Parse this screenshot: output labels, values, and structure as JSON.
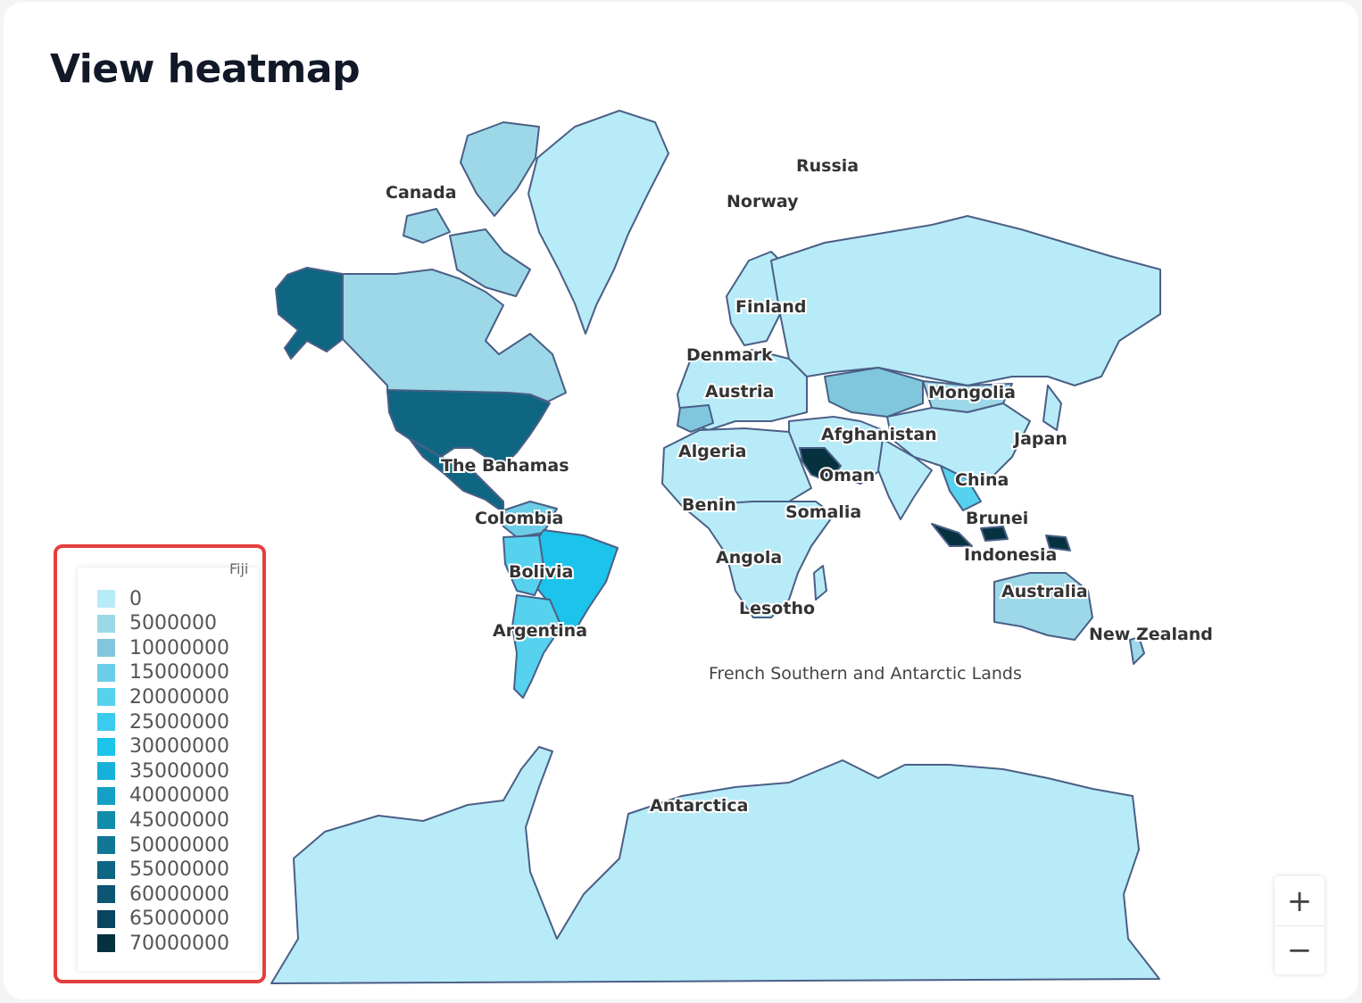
{
  "page": {
    "title": "View heatmap"
  },
  "map": {
    "labels": [
      "Canada",
      "Russia",
      "Norway",
      "Finland",
      "Denmark",
      "Austria",
      "Mongolia",
      "Afghanistan",
      "Japan",
      "Algeria",
      "Oman",
      "China",
      "The Bahamas",
      "Benin",
      "Somalia",
      "Brunei",
      "Colombia",
      "Angola",
      "Indonesia",
      "Bolivia",
      "Lesotho",
      "Australia",
      "Argentina",
      "New Zealand",
      "French Southern and Antarctic Lands",
      "Antarctica",
      "Fiji"
    ]
  },
  "legend": {
    "fiji_label": "Fiji",
    "items": [
      {
        "label": "0",
        "color": "#b8ebf8"
      },
      {
        "label": "5000000",
        "color": "#9dd8e8"
      },
      {
        "label": "10000000",
        "color": "#80c6dc"
      },
      {
        "label": "15000000",
        "color": "#6ccde6"
      },
      {
        "label": "20000000",
        "color": "#56d1ee"
      },
      {
        "label": "25000000",
        "color": "#3ccbee"
      },
      {
        "label": "30000000",
        "color": "#1cc3ea"
      },
      {
        "label": "35000000",
        "color": "#16b0d8"
      },
      {
        "label": "40000000",
        "color": "#14a0c4"
      },
      {
        "label": "45000000",
        "color": "#128cab"
      },
      {
        "label": "50000000",
        "color": "#107896"
      },
      {
        "label": "55000000",
        "color": "#0f6682"
      },
      {
        "label": "60000000",
        "color": "#0d5673"
      },
      {
        "label": "65000000",
        "color": "#0a4560"
      },
      {
        "label": "70000000",
        "color": "#06313f"
      }
    ]
  },
  "zoom": {
    "in_label": "+",
    "out_label": "−"
  }
}
